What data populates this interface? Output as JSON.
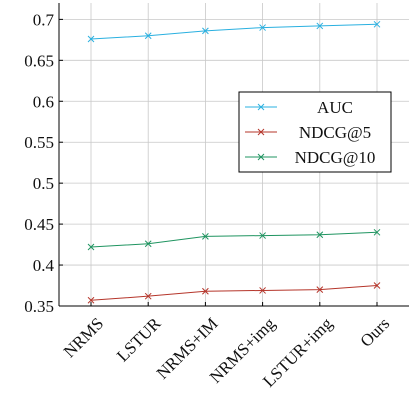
{
  "chart_data": {
    "type": "line",
    "title": "",
    "xlabel": "",
    "ylabel": "",
    "categories": [
      "NRMS",
      "LSTUR",
      "NRMS+IM",
      "NRMS+img",
      "LSTUR+img",
      "Ours"
    ],
    "ylim": [
      0.35,
      0.72
    ],
    "yticks": [
      0.35,
      0.4,
      0.45,
      0.5,
      0.55,
      0.6,
      0.65,
      0.7
    ],
    "ytick_labels": [
      "0.35",
      "0.4",
      "0.45",
      "0.5",
      "0.55",
      "0.6",
      "0.65",
      "0.7"
    ],
    "grid": true,
    "legend_position": "right",
    "series": [
      {
        "name": "AUC",
        "color": "#2ab0e0",
        "marker": "x",
        "values": [
          0.676,
          0.68,
          0.686,
          0.69,
          0.692,
          0.694
        ]
      },
      {
        "name": "NDCG@5",
        "color": "#b5352a",
        "marker": "x",
        "values": [
          0.357,
          0.362,
          0.368,
          0.369,
          0.37,
          0.375
        ]
      },
      {
        "name": "NDCG@10",
        "color": "#1f9460",
        "marker": "x",
        "values": [
          0.422,
          0.426,
          0.435,
          0.436,
          0.437,
          0.44
        ]
      }
    ]
  }
}
